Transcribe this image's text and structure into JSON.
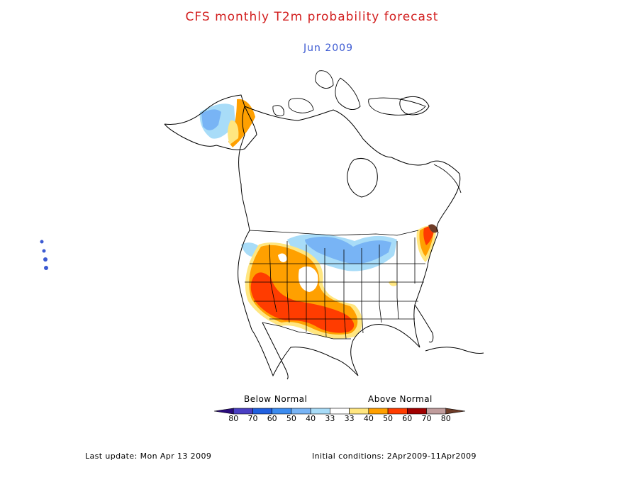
{
  "title": "CFS monthly T2m probability forecast",
  "subtitle": "Jun 2009",
  "legend": {
    "below_label": "Below Normal",
    "above_label": "Above Normal",
    "ticks": [
      "80",
      "70",
      "60",
      "50",
      "40",
      "33",
      "33",
      "40",
      "50",
      "60",
      "70",
      "80"
    ],
    "colors": [
      "#2a0b7d",
      "#4a3fc4",
      "#2060e0",
      "#3c8cf0",
      "#78b4f5",
      "#a8dcf8",
      "#ffffff",
      "#ffe680",
      "#ffa000",
      "#ff3c00",
      "#a00000",
      "#c09c9c",
      "#6e3c28"
    ]
  },
  "footer": {
    "last_update": "Last update: Mon Apr 13 2009",
    "initial_conditions": "Initial conditions: 2Apr2009-11Apr2009"
  }
}
